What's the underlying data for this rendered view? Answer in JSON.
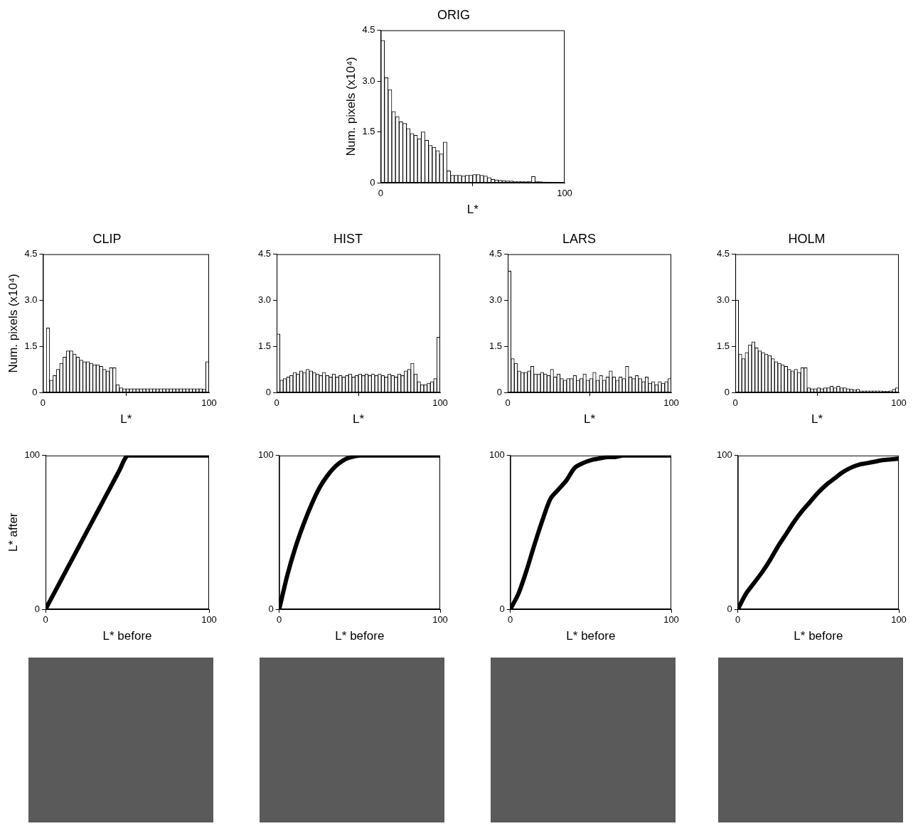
{
  "chart_data": [
    {
      "type": "histogram",
      "title": "ORIG",
      "xlabel": "L*",
      "ylabel": "Num. pixels (x10⁴)",
      "color": "#ffffff",
      "grid": false,
      "bins": [
        0,
        2,
        4,
        6,
        8,
        10,
        12,
        14,
        16,
        18,
        20,
        22,
        24,
        26,
        28,
        30,
        32,
        34,
        36,
        38,
        40,
        42,
        44,
        46,
        48,
        50,
        52,
        54,
        56,
        58,
        60,
        62,
        64,
        66,
        68,
        70,
        72,
        74,
        76,
        78,
        80,
        82,
        84,
        86,
        88,
        90,
        92,
        94,
        96,
        98,
        100
      ],
      "values": [
        4.2,
        3.1,
        2.75,
        2.1,
        1.95,
        1.8,
        1.75,
        1.6,
        1.45,
        1.4,
        1.3,
        1.5,
        1.25,
        1.1,
        1.05,
        0.95,
        0.85,
        1.2,
        0.35,
        0.22,
        0.22,
        0.22,
        0.2,
        0.22,
        0.22,
        0.24,
        0.24,
        0.22,
        0.2,
        0.15,
        0.1,
        0.08,
        0.07,
        0.06,
        0.05,
        0.05,
        0.04,
        0.04,
        0.04,
        0.03,
        0.04,
        0.18,
        0.04,
        0.03,
        0.02,
        0.02,
        0.01,
        0.01,
        0.01,
        0
      ],
      "xlim": [
        0,
        100
      ],
      "xticks": [
        0,
        100
      ],
      "ylim": [
        0,
        4.5
      ],
      "yticks": [
        0,
        1.5,
        {
          "value": 3,
          "label": "3.0"
        },
        4.5
      ]
    },
    {
      "type": "histogram",
      "title": "CLIP",
      "xlabel": "L*",
      "ylabel": "Num. pixels (x10⁴)",
      "color": "#ffffff",
      "grid": false,
      "bins": [
        0,
        2,
        4,
        6,
        8,
        10,
        12,
        14,
        16,
        18,
        20,
        22,
        24,
        26,
        28,
        30,
        32,
        34,
        36,
        38,
        40,
        42,
        44,
        46,
        48,
        50,
        52,
        54,
        56,
        58,
        60,
        62,
        64,
        66,
        68,
        70,
        72,
        74,
        76,
        78,
        80,
        82,
        84,
        86,
        88,
        90,
        92,
        94,
        96,
        98,
        100
      ],
      "values": [
        0,
        2.1,
        0.4,
        0.55,
        0.75,
        0.95,
        1.15,
        1.35,
        1.35,
        1.25,
        1.15,
        1.05,
        1.0,
        1.0,
        0.95,
        0.9,
        0.9,
        0.85,
        0.75,
        0.7,
        0.8,
        0.8,
        0.25,
        0.15,
        0.12,
        0.12,
        0.12,
        0.12,
        0.12,
        0.12,
        0.12,
        0.12,
        0.12,
        0.12,
        0.12,
        0.12,
        0.12,
        0.12,
        0.12,
        0.12,
        0.12,
        0.12,
        0.12,
        0.12,
        0.12,
        0.12,
        0.12,
        0.12,
        0.1,
        1.0
      ],
      "xlim": [
        0,
        100
      ],
      "xticks": [
        0,
        100
      ],
      "ylim": [
        0,
        4.5
      ],
      "yticks": [
        0,
        1.5,
        {
          "value": 3,
          "label": "3.0"
        },
        4.5
      ]
    },
    {
      "type": "histogram",
      "title": "HIST",
      "xlabel": "L*",
      "color": "#ffffff",
      "grid": false,
      "bins": [
        0,
        2,
        4,
        6,
        8,
        10,
        12,
        14,
        16,
        18,
        20,
        22,
        24,
        26,
        28,
        30,
        32,
        34,
        36,
        38,
        40,
        42,
        44,
        46,
        48,
        50,
        52,
        54,
        56,
        58,
        60,
        62,
        64,
        66,
        68,
        70,
        72,
        74,
        76,
        78,
        80,
        82,
        84,
        86,
        88,
        90,
        92,
        94,
        96,
        98,
        100
      ],
      "values": [
        1.9,
        0.4,
        0.45,
        0.5,
        0.55,
        0.65,
        0.6,
        0.7,
        0.65,
        0.75,
        0.7,
        0.65,
        0.6,
        0.55,
        0.65,
        0.55,
        0.5,
        0.6,
        0.5,
        0.55,
        0.5,
        0.55,
        0.6,
        0.5,
        0.55,
        0.6,
        0.55,
        0.6,
        0.55,
        0.6,
        0.55,
        0.6,
        0.55,
        0.5,
        0.6,
        0.55,
        0.5,
        0.6,
        0.55,
        0.7,
        0.75,
        0.95,
        0.6,
        0.35,
        0.25,
        0.25,
        0.3,
        0.35,
        0.45,
        1.8
      ],
      "xlim": [
        0,
        100
      ],
      "xticks": [
        0,
        100
      ],
      "ylim": [
        0,
        4.5
      ],
      "yticks": [
        0,
        1.5,
        {
          "value": 3,
          "label": "3.0"
        },
        4.5
      ]
    },
    {
      "type": "histogram",
      "title": "LARS",
      "xlabel": "L*",
      "color": "#ffffff",
      "grid": false,
      "bins": [
        0,
        2,
        4,
        6,
        8,
        10,
        12,
        14,
        16,
        18,
        20,
        22,
        24,
        26,
        28,
        30,
        32,
        34,
        36,
        38,
        40,
        42,
        44,
        46,
        48,
        50,
        52,
        54,
        56,
        58,
        60,
        62,
        64,
        66,
        68,
        70,
        72,
        74,
        76,
        78,
        80,
        82,
        84,
        86,
        88,
        90,
        92,
        94,
        96,
        98,
        100
      ],
      "values": [
        3.95,
        1.1,
        0.95,
        0.7,
        0.65,
        0.65,
        0.7,
        0.85,
        0.6,
        0.6,
        0.65,
        0.6,
        0.55,
        0.75,
        0.5,
        0.6,
        0.45,
        0.4,
        0.45,
        0.45,
        0.55,
        0.4,
        0.45,
        0.6,
        0.4,
        0.45,
        0.65,
        0.4,
        0.55,
        0.4,
        0.5,
        0.7,
        0.5,
        0.4,
        0.5,
        0.45,
        0.85,
        0.5,
        0.45,
        0.55,
        0.45,
        0.35,
        0.5,
        0.3,
        0.35,
        0.25,
        0.35,
        0.3,
        0.35,
        0.45
      ],
      "xlim": [
        0,
        100
      ],
      "xticks": [
        0,
        100
      ],
      "ylim": [
        0,
        4.5
      ],
      "yticks": [
        0,
        1.5,
        {
          "value": 3,
          "label": "3.0"
        },
        4.5
      ]
    },
    {
      "type": "histogram",
      "title": "HOLM",
      "xlabel": "L*",
      "color": "#ffffff",
      "grid": false,
      "bins": [
        0,
        2,
        4,
        6,
        8,
        10,
        12,
        14,
        16,
        18,
        20,
        22,
        24,
        26,
        28,
        30,
        32,
        34,
        36,
        38,
        40,
        42,
        44,
        46,
        48,
        50,
        52,
        54,
        56,
        58,
        60,
        62,
        64,
        66,
        68,
        70,
        72,
        74,
        76,
        78,
        80,
        82,
        84,
        86,
        88,
        90,
        92,
        94,
        96,
        98,
        100
      ],
      "values": [
        3.0,
        1.25,
        1.1,
        1.3,
        1.55,
        1.65,
        1.45,
        1.35,
        1.3,
        1.25,
        1.2,
        1.1,
        1.0,
        0.95,
        0.9,
        0.85,
        0.75,
        0.7,
        0.75,
        0.65,
        0.8,
        0.8,
        0.15,
        0.12,
        0.12,
        0.15,
        0.12,
        0.15,
        0.15,
        0.2,
        0.15,
        0.2,
        0.15,
        0.15,
        0.12,
        0.1,
        0.08,
        0.1,
        0.05,
        0.05,
        0.05,
        0.05,
        0.05,
        0.05,
        0.05,
        0.04,
        0.04,
        0.05,
        0.1,
        0.15
      ],
      "xlim": [
        0,
        100
      ],
      "xticks": [
        0,
        100
      ],
      "ylim": [
        0,
        4.5
      ],
      "yticks": [
        0,
        1.5,
        {
          "value": 3,
          "label": "3.0"
        },
        4.5
      ]
    },
    {
      "type": "line",
      "xlabel": "L* before",
      "ylabel": "L* after",
      "color": "#000000",
      "grid": false,
      "x": [
        0,
        5,
        10,
        15,
        20,
        25,
        30,
        35,
        40,
        45,
        50,
        55,
        60,
        65,
        70,
        75,
        80,
        85,
        90,
        95,
        100
      ],
      "values": [
        0,
        10,
        20,
        30,
        40,
        50,
        60,
        70,
        80,
        90,
        100,
        100,
        100,
        100,
        100,
        100,
        100,
        100,
        100,
        100,
        100
      ],
      "xlim": [
        0,
        100
      ],
      "xticks": [
        0,
        100
      ],
      "ylim": [
        0,
        100
      ],
      "yticks": [
        0,
        100
      ]
    },
    {
      "type": "line",
      "xlabel": "L* before",
      "color": "#000000",
      "grid": false,
      "x": [
        0,
        5,
        10,
        15,
        20,
        25,
        30,
        35,
        40,
        45,
        50,
        55,
        60,
        65,
        70,
        75,
        80,
        85,
        90,
        95,
        100
      ],
      "values": [
        0,
        22,
        40,
        55,
        68,
        79,
        87,
        93,
        97,
        99,
        100,
        100,
        100,
        100,
        100,
        100,
        100,
        100,
        100,
        100,
        100
      ],
      "xlim": [
        0,
        100
      ],
      "xticks": [
        0,
        100
      ],
      "ylim": [
        0,
        100
      ],
      "yticks": [
        0,
        100
      ]
    },
    {
      "type": "line",
      "xlabel": "L* before",
      "color": "#000000",
      "grid": false,
      "x": [
        0,
        5,
        10,
        15,
        20,
        25,
        30,
        35,
        40,
        45,
        50,
        55,
        60,
        65,
        70,
        75,
        80,
        85,
        90,
        95,
        100
      ],
      "values": [
        0,
        10,
        25,
        42,
        58,
        72,
        78,
        84,
        92,
        95,
        97,
        98,
        99,
        99,
        100,
        100,
        100,
        100,
        100,
        100,
        100
      ],
      "xlim": [
        0,
        100
      ],
      "xticks": [
        0,
        100
      ],
      "ylim": [
        0,
        100
      ],
      "yticks": [
        0,
        100
      ]
    },
    {
      "type": "line",
      "xlabel": "L* before",
      "color": "#000000",
      "grid": false,
      "x": [
        0,
        5,
        10,
        15,
        20,
        25,
        30,
        35,
        40,
        45,
        50,
        55,
        60,
        65,
        70,
        75,
        80,
        85,
        90,
        95,
        100
      ],
      "values": [
        0,
        10,
        17,
        24,
        32,
        41,
        49,
        57,
        64,
        70,
        76,
        81,
        85,
        89,
        92,
        94,
        95,
        96,
        97,
        97.5,
        98
      ],
      "xlim": [
        0,
        100
      ],
      "xticks": [
        0,
        100
      ],
      "ylim": [
        0,
        100
      ],
      "yticks": [
        0,
        100
      ]
    }
  ]
}
